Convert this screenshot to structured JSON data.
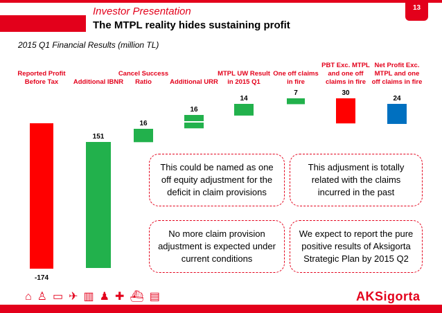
{
  "header": {
    "section": "Investor Presentation",
    "title": "The MTPL reality hides sustaining profit",
    "page_number": "13"
  },
  "subtitle": "2015 Q1 Financial Results (million TL)",
  "chart_data": {
    "type": "bar",
    "subtype": "waterfall",
    "categories": [
      "Reported Profit Before Tax",
      "Additional IBNR",
      "Cancel Success Ratio",
      "Additional URR",
      "MTPL UW Result in 2015 Q1",
      "One off claims in fire",
      "PBT Exc. MTPL and one off claims in fire",
      "Net Profit Exc. MTPL and one off claims in fire"
    ],
    "category_lines": [
      [
        "Reported Profit",
        "Before Tax"
      ],
      [
        "Additional IBNR"
      ],
      [
        "Cancel Success",
        "Ratio"
      ],
      [
        "Additional URR"
      ],
      [
        "MTPL UW Result",
        "in 2015 Q1"
      ],
      [
        "One off claims",
        "in fire"
      ],
      [
        "PBT Exc. MTPL",
        "and one off",
        "claims in fire"
      ],
      [
        "Net Profit Exc.",
        "MTPL and one",
        "off claims in fire"
      ]
    ],
    "values": [
      -174,
      151,
      16,
      16,
      14,
      7,
      30,
      24
    ],
    "data_labels": [
      "-174",
      "151",
      "16",
      "16",
      "14",
      "7",
      "30",
      "24"
    ],
    "bar_kinds": [
      "total",
      "delta",
      "delta",
      "delta",
      "delta",
      "delta",
      "total",
      "total"
    ],
    "colors": [
      "#ff0000",
      "#22b14c",
      "#22b14c",
      "#22b14c",
      "#22b14c",
      "#22b14c",
      "#ff0000",
      "#0070c0"
    ],
    "grid": false,
    "legend": "none"
  },
  "callouts": [
    "This could be named as one off equity adjustment for the deficit in claim provisions",
    "This adjusment is totally related with the claims incurred in the past",
    "No more claim provision adjustment is expected under current conditions",
    "We expect to report the pure positive results of Aksigorta Strategic Plan by 2015 Q2"
  ],
  "footer": {
    "logo": "AKSigorta"
  },
  "colors": {
    "brand_red": "#e3001b",
    "green": "#22b14c",
    "blue": "#0070c0"
  }
}
